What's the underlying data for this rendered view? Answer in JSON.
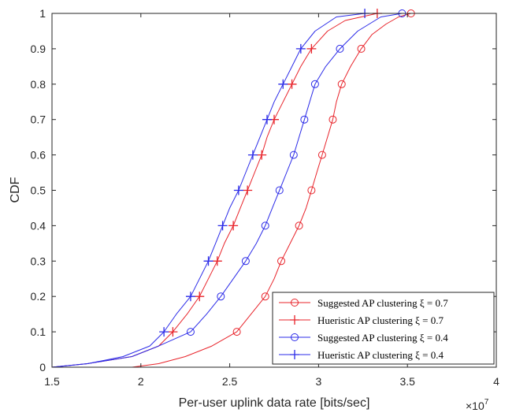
{
  "chart_data": {
    "type": "line",
    "xlabel": "Per-user uplink data rate [bits/sec]",
    "ylabel": "CDF",
    "x_multiplier": "×10",
    "x_multiplier_exp": "7",
    "xlim": [
      1.5,
      4
    ],
    "ylim": [
      0,
      1
    ],
    "xticks": [
      "1.5",
      "2",
      "2.5",
      "3",
      "3.5",
      "4"
    ],
    "yticks": [
      "0",
      "0.1",
      "0.2",
      "0.3",
      "0.4",
      "0.5",
      "0.6",
      "0.7",
      "0.8",
      "0.9",
      "1"
    ],
    "grid": false,
    "legend_position": "bottom-right",
    "series": [
      {
        "name": "Suggested AP clustering ξ = 0.7",
        "color": "#e8232a",
        "marker": "circle",
        "points": [
          [
            1.5,
            0
          ],
          [
            1.95,
            0
          ],
          [
            2.1,
            0.01
          ],
          [
            2.25,
            0.03
          ],
          [
            2.4,
            0.06
          ],
          [
            2.54,
            0.1
          ],
          [
            2.62,
            0.15
          ],
          [
            2.7,
            0.2
          ],
          [
            2.75,
            0.25
          ],
          [
            2.79,
            0.3
          ],
          [
            2.84,
            0.35
          ],
          [
            2.89,
            0.4
          ],
          [
            2.93,
            0.45
          ],
          [
            2.96,
            0.5
          ],
          [
            2.99,
            0.55
          ],
          [
            3.02,
            0.6
          ],
          [
            3.05,
            0.65
          ],
          [
            3.08,
            0.7
          ],
          [
            3.1,
            0.75
          ],
          [
            3.13,
            0.8
          ],
          [
            3.18,
            0.85
          ],
          [
            3.24,
            0.9
          ],
          [
            3.3,
            0.94
          ],
          [
            3.38,
            0.97
          ],
          [
            3.45,
            0.99
          ],
          [
            3.52,
            1
          ]
        ],
        "marker_points": [
          [
            2.54,
            0.1
          ],
          [
            2.7,
            0.2
          ],
          [
            2.79,
            0.3
          ],
          [
            2.89,
            0.4
          ],
          [
            2.96,
            0.5
          ],
          [
            3.02,
            0.6
          ],
          [
            3.08,
            0.7
          ],
          [
            3.13,
            0.8
          ],
          [
            3.24,
            0.9
          ],
          [
            3.52,
            1
          ]
        ]
      },
      {
        "name": "Hueristic AP clustering ξ = 0.7",
        "color": "#e8232a",
        "marker": "plus",
        "points": [
          [
            1.5,
            0
          ],
          [
            1.7,
            0.01
          ],
          [
            1.95,
            0.03
          ],
          [
            2.1,
            0.06
          ],
          [
            2.18,
            0.1
          ],
          [
            2.26,
            0.15
          ],
          [
            2.33,
            0.2
          ],
          [
            2.38,
            0.25
          ],
          [
            2.43,
            0.3
          ],
          [
            2.47,
            0.35
          ],
          [
            2.52,
            0.4
          ],
          [
            2.56,
            0.45
          ],
          [
            2.6,
            0.5
          ],
          [
            2.64,
            0.55
          ],
          [
            2.68,
            0.6
          ],
          [
            2.71,
            0.65
          ],
          [
            2.75,
            0.7
          ],
          [
            2.8,
            0.75
          ],
          [
            2.85,
            0.8
          ],
          [
            2.9,
            0.85
          ],
          [
            2.96,
            0.9
          ],
          [
            3.05,
            0.95
          ],
          [
            3.15,
            0.98
          ],
          [
            3.33,
            1
          ]
        ],
        "marker_points": [
          [
            2.18,
            0.1
          ],
          [
            2.33,
            0.2
          ],
          [
            2.43,
            0.3
          ],
          [
            2.52,
            0.4
          ],
          [
            2.6,
            0.5
          ],
          [
            2.68,
            0.6
          ],
          [
            2.75,
            0.7
          ],
          [
            2.85,
            0.8
          ],
          [
            2.96,
            0.9
          ],
          [
            3.33,
            1
          ]
        ]
      },
      {
        "name": "Suggested AP clustering ξ = 0.4",
        "color": "#2b2be8",
        "marker": "circle",
        "points": [
          [
            1.5,
            0
          ],
          [
            1.7,
            0.01
          ],
          [
            1.95,
            0.03
          ],
          [
            2.1,
            0.06
          ],
          [
            2.28,
            0.1
          ],
          [
            2.37,
            0.15
          ],
          [
            2.45,
            0.2
          ],
          [
            2.52,
            0.25
          ],
          [
            2.59,
            0.3
          ],
          [
            2.65,
            0.35
          ],
          [
            2.7,
            0.4
          ],
          [
            2.74,
            0.45
          ],
          [
            2.78,
            0.5
          ],
          [
            2.82,
            0.55
          ],
          [
            2.86,
            0.6
          ],
          [
            2.89,
            0.65
          ],
          [
            2.92,
            0.7
          ],
          [
            2.95,
            0.75
          ],
          [
            2.98,
            0.8
          ],
          [
            3.04,
            0.85
          ],
          [
            3.12,
            0.9
          ],
          [
            3.22,
            0.95
          ],
          [
            3.35,
            0.99
          ],
          [
            3.47,
            1
          ]
        ],
        "marker_points": [
          [
            2.28,
            0.1
          ],
          [
            2.45,
            0.2
          ],
          [
            2.59,
            0.3
          ],
          [
            2.7,
            0.4
          ],
          [
            2.78,
            0.5
          ],
          [
            2.86,
            0.6
          ],
          [
            2.92,
            0.7
          ],
          [
            2.98,
            0.8
          ],
          [
            3.12,
            0.9
          ],
          [
            3.47,
            1
          ]
        ]
      },
      {
        "name": "Hueristic AP clustering ξ = 0.4",
        "color": "#2b2be8",
        "marker": "plus",
        "points": [
          [
            1.5,
            0
          ],
          [
            1.7,
            0.01
          ],
          [
            1.9,
            0.03
          ],
          [
            2.05,
            0.06
          ],
          [
            2.13,
            0.1
          ],
          [
            2.2,
            0.15
          ],
          [
            2.28,
            0.2
          ],
          [
            2.33,
            0.25
          ],
          [
            2.38,
            0.3
          ],
          [
            2.42,
            0.35
          ],
          [
            2.46,
            0.4
          ],
          [
            2.5,
            0.45
          ],
          [
            2.55,
            0.5
          ],
          [
            2.59,
            0.55
          ],
          [
            2.63,
            0.6
          ],
          [
            2.67,
            0.65
          ],
          [
            2.71,
            0.7
          ],
          [
            2.75,
            0.75
          ],
          [
            2.8,
            0.8
          ],
          [
            2.85,
            0.85
          ],
          [
            2.9,
            0.9
          ],
          [
            2.98,
            0.95
          ],
          [
            3.1,
            0.99
          ],
          [
            3.26,
            1
          ]
        ],
        "marker_points": [
          [
            2.13,
            0.1
          ],
          [
            2.28,
            0.2
          ],
          [
            2.38,
            0.3
          ],
          [
            2.46,
            0.4
          ],
          [
            2.55,
            0.5
          ],
          [
            2.63,
            0.6
          ],
          [
            2.71,
            0.7
          ],
          [
            2.8,
            0.8
          ],
          [
            2.9,
            0.9
          ],
          [
            3.26,
            1
          ]
        ]
      }
    ]
  }
}
